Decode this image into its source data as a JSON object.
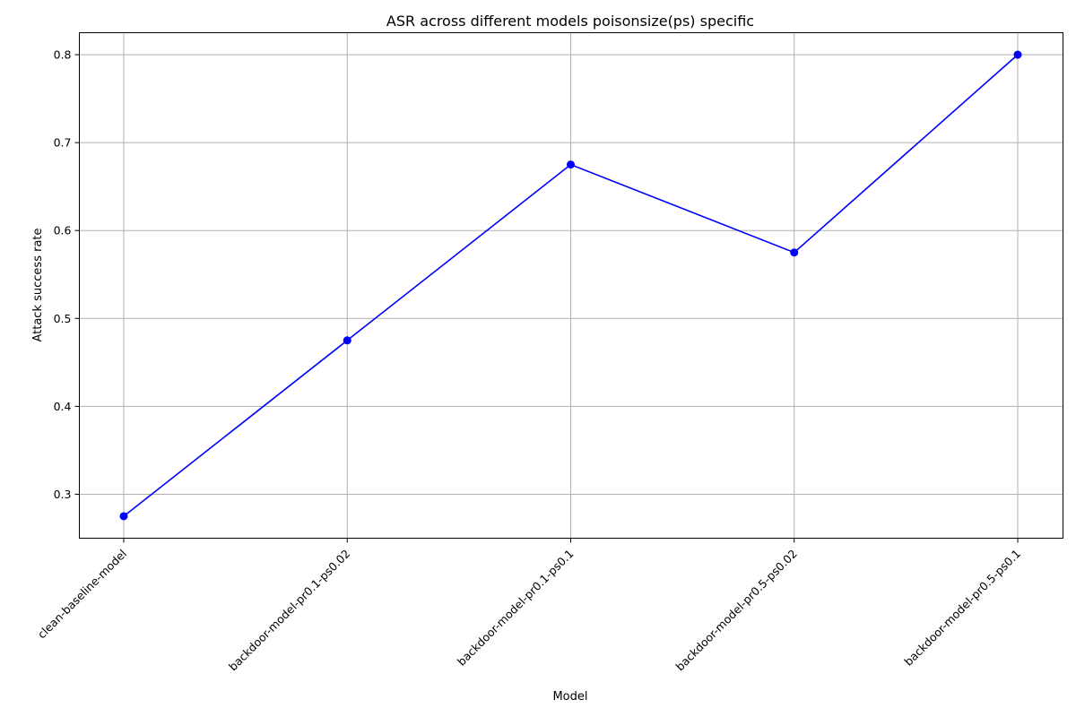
{
  "chart_data": {
    "type": "line",
    "title": "ASR across different models poisonsize(ps) specific",
    "xlabel": "Model",
    "ylabel": "Attack success rate",
    "categories": [
      "clean-baseline-model",
      "backdoor-model-pr0.1-ps0.02",
      "backdoor-model-pr0.1-ps0.1",
      "backdoor-model-pr0.5-ps0.02",
      "backdoor-model-pr0.5-ps0.1"
    ],
    "series": [
      {
        "values": [
          0.275,
          0.475,
          0.675,
          0.575,
          0.8
        ],
        "color": "#0000ff",
        "marker": "circle"
      }
    ],
    "ylim": [
      0.25,
      0.825
    ],
    "yticks": [
      0.3,
      0.4,
      0.5,
      0.6,
      0.7,
      0.8
    ],
    "ytick_labels": [
      "0.3",
      "0.4",
      "0.5",
      "0.6",
      "0.7",
      "0.8"
    ],
    "grid": true,
    "legend": "none"
  }
}
